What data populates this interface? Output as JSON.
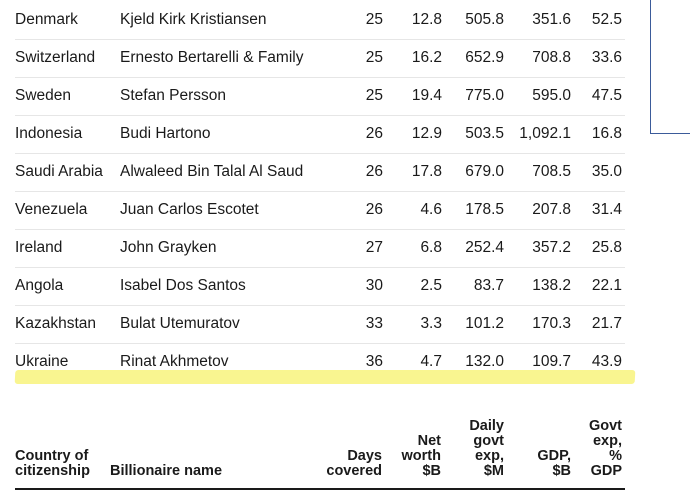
{
  "rows": [
    {
      "country": "Denmark",
      "name": "Kjeld Kirk Kristiansen",
      "days": "25",
      "net": "12.8",
      "exp": "505.8",
      "gdp": "351.6",
      "pct": "52.5"
    },
    {
      "country": "Switzerland",
      "name": "Ernesto Bertarelli & Family",
      "days": "25",
      "net": "16.2",
      "exp": "652.9",
      "gdp": "708.8",
      "pct": "33.6"
    },
    {
      "country": "Sweden",
      "name": "Stefan Persson",
      "days": "25",
      "net": "19.4",
      "exp": "775.0",
      "gdp": "595.0",
      "pct": "47.5"
    },
    {
      "country": "Indonesia",
      "name": "Budi Hartono",
      "days": "26",
      "net": "12.9",
      "exp": "503.5",
      "gdp": "1,092.1",
      "pct": "16.8"
    },
    {
      "country": "Saudi Arabia",
      "name": "Alwaleed Bin Talal Al Saud",
      "days": "26",
      "net": "17.8",
      "exp": "679.0",
      "gdp": "708.5",
      "pct": "35.0"
    },
    {
      "country": "Venezuela",
      "name": "Juan Carlos Escotet",
      "days": "26",
      "net": "4.6",
      "exp": "178.5",
      "gdp": "207.8",
      "pct": "31.4"
    },
    {
      "country": "Ireland",
      "name": "John Grayken",
      "days": "27",
      "net": "6.8",
      "exp": "252.4",
      "gdp": "357.2",
      "pct": "25.8"
    },
    {
      "country": "Angola",
      "name": "Isabel Dos Santos",
      "days": "30",
      "net": "2.5",
      "exp": "83.7",
      "gdp": "138.2",
      "pct": "22.1"
    },
    {
      "country": "Kazakhstan",
      "name": "Bulat Utemuratov",
      "days": "33",
      "net": "3.3",
      "exp": "101.2",
      "gdp": "170.3",
      "pct": "21.7"
    },
    {
      "country": "Ukraine",
      "name": "Rinat Akhmetov",
      "days": "36",
      "net": "4.7",
      "exp": "132.0",
      "gdp": "109.7",
      "pct": "43.9"
    }
  ],
  "header": {
    "country": [
      "Country of",
      "citizenship"
    ],
    "name": [
      "Billionaire name"
    ],
    "days": [
      "Days",
      "covered"
    ],
    "net": [
      "Net",
      "worth",
      "$B"
    ],
    "exp": [
      "Daily",
      "govt",
      "exp,",
      "$M"
    ],
    "gdp": [
      "GDP,",
      "$B"
    ],
    "pct": [
      "Govt",
      "exp,",
      "%",
      "GDP"
    ]
  },
  "colors": {
    "highlight": "#f7f26b",
    "callout_line": "#3b5b9a",
    "rule": "#1a1a1a"
  }
}
